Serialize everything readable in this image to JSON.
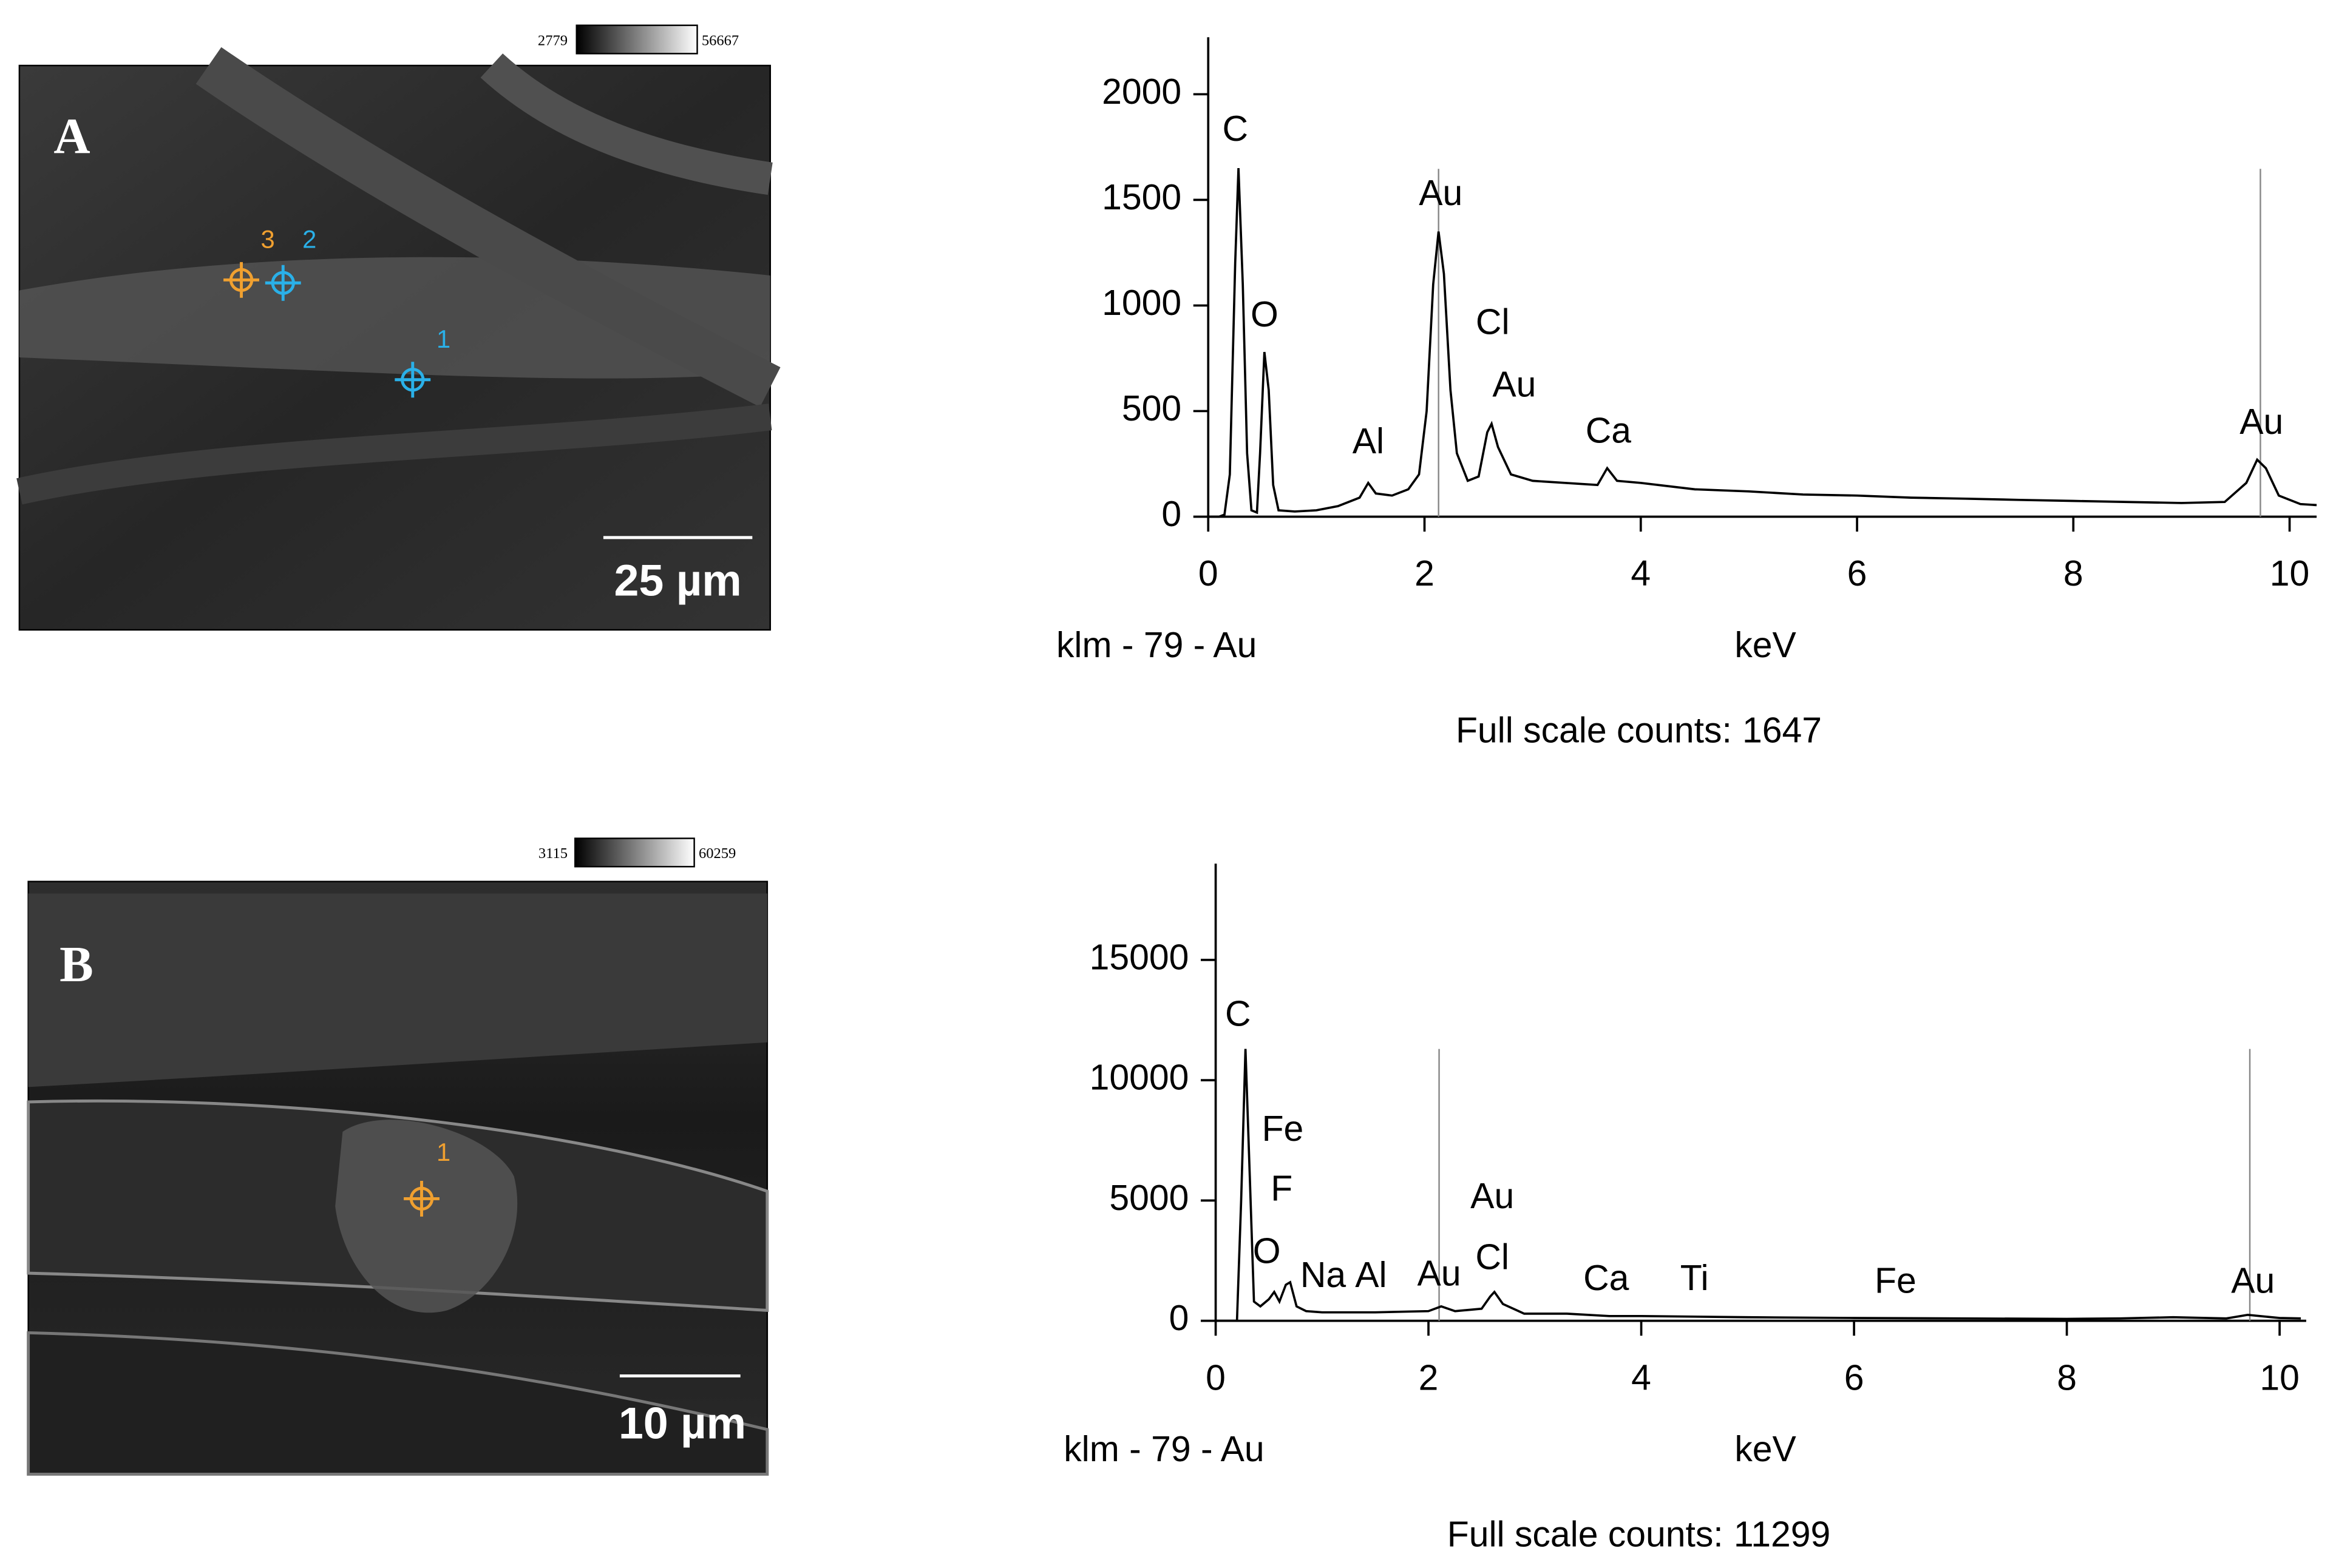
{
  "panels": [
    {
      "label": "A",
      "scale_bar": "25 µm",
      "colorbar": [
        2779,
        56667
      ],
      "points": [
        "1",
        "2",
        "3"
      ]
    },
    {
      "label": "B",
      "scale_bar": "10 µm",
      "colorbar": [
        3115,
        60259
      ],
      "points": [
        "1"
      ]
    }
  ],
  "chart_data": [
    {
      "type": "line",
      "xlabel": "keV",
      "note": "klm - 79 - Au",
      "footer": "Full scale counts:",
      "full_scale_counts": 1647,
      "color": "#000000",
      "x": [
        0,
        0.1,
        0.15,
        0.2,
        0.25,
        0.28,
        0.32,
        0.36,
        0.4,
        0.45,
        0.48,
        0.52,
        0.56,
        0.6,
        0.65,
        0.8,
        1.0,
        1.2,
        1.4,
        1.48,
        1.55,
        1.7,
        1.85,
        1.95,
        2.02,
        2.08,
        2.13,
        2.18,
        2.24,
        2.3,
        2.4,
        2.5,
        2.58,
        2.62,
        2.68,
        2.8,
        3.0,
        3.3,
        3.6,
        3.69,
        3.78,
        4.0,
        4.5,
        5,
        5.5,
        6,
        6.5,
        7,
        7.5,
        8,
        8.5,
        9,
        9.4,
        9.6,
        9.7,
        9.78,
        9.9,
        10.1,
        10.25
      ],
      "values": [
        0,
        0,
        10,
        200,
        1200,
        1650,
        1100,
        300,
        30,
        20,
        300,
        780,
        600,
        150,
        30,
        25,
        30,
        50,
        90,
        160,
        110,
        100,
        130,
        200,
        500,
        1100,
        1350,
        1150,
        600,
        300,
        170,
        190,
        400,
        440,
        330,
        200,
        170,
        160,
        150,
        230,
        170,
        160,
        130,
        120,
        105,
        100,
        90,
        85,
        80,
        75,
        70,
        65,
        70,
        160,
        270,
        230,
        100,
        60,
        55
      ],
      "xlim": [
        0,
        10.25
      ],
      "ylim": [
        0,
        2270
      ],
      "xticks": [
        0,
        2,
        4,
        6,
        8,
        10
      ],
      "yticks": [
        0,
        500,
        1000,
        1500,
        2000
      ],
      "markers": [
        2.13,
        9.73
      ],
      "annotations": [
        {
          "text": "C",
          "x": 0.25,
          "y": 1825
        },
        {
          "text": "O",
          "x": 0.52,
          "y": 945
        },
        {
          "text": "Al",
          "x": 1.48,
          "y": 345
        },
        {
          "text": "Au",
          "x": 2.15,
          "y": 1520
        },
        {
          "text": "Cl",
          "x": 2.63,
          "y": 910
        },
        {
          "text": "Au",
          "x": 2.83,
          "y": 613
        },
        {
          "text": "Ca",
          "x": 3.7,
          "y": 395
        },
        {
          "text": "Au",
          "x": 9.74,
          "y": 437
        }
      ]
    },
    {
      "type": "line",
      "xlabel": "keV",
      "note": "klm - 79 - Au",
      "footer": "Full scale counts:",
      "full_scale_counts": 11299,
      "color": "#000000",
      "x": [
        0,
        0.2,
        0.24,
        0.28,
        0.32,
        0.36,
        0.42,
        0.5,
        0.55,
        0.6,
        0.66,
        0.7,
        0.76,
        0.85,
        1.0,
        1.5,
        2.0,
        2.12,
        2.25,
        2.5,
        2.58,
        2.62,
        2.7,
        2.9,
        3.3,
        3.7,
        4,
        5,
        6,
        7,
        8,
        8.5,
        9,
        9.5,
        9.7,
        10,
        10.2
      ],
      "values": [
        0,
        0,
        5000,
        11300,
        6000,
        800,
        600,
        900,
        1200,
        800,
        1500,
        1600,
        600,
        400,
        350,
        350,
        400,
        600,
        400,
        500,
        1000,
        1200,
        700,
        300,
        300,
        200,
        200,
        150,
        120,
        100,
        80,
        100,
        150,
        100,
        250,
        120,
        100
      ],
      "xlim": [
        0,
        10.25
      ],
      "ylim": [
        0,
        19000
      ],
      "xticks": [
        0,
        2,
        4,
        6,
        8,
        10
      ],
      "yticks": [
        0,
        5000,
        10000,
        15000
      ],
      "markers": [
        2.1,
        9.72
      ],
      "annotations": [
        {
          "text": "C",
          "x": 0.21,
          "y": 12650
        },
        {
          "text": "Fe",
          "x": 0.63,
          "y": 7870
        },
        {
          "text": "F",
          "x": 0.62,
          "y": 5390
        },
        {
          "text": "O",
          "x": 0.48,
          "y": 2790
        },
        {
          "text": "Na",
          "x": 1.01,
          "y": 1800
        },
        {
          "text": "Al",
          "x": 1.46,
          "y": 1800
        },
        {
          "text": "Au",
          "x": 2.1,
          "y": 1860
        },
        {
          "text": "Au",
          "x": 2.6,
          "y": 5080
        },
        {
          "text": "Cl",
          "x": 2.6,
          "y": 2540
        },
        {
          "text": "Ca",
          "x": 3.67,
          "y": 1670
        },
        {
          "text": "Ti",
          "x": 4.5,
          "y": 1670
        },
        {
          "text": "Fe",
          "x": 6.39,
          "y": 1550
        },
        {
          "text": "Au",
          "x": 9.75,
          "y": 1550
        }
      ]
    }
  ]
}
